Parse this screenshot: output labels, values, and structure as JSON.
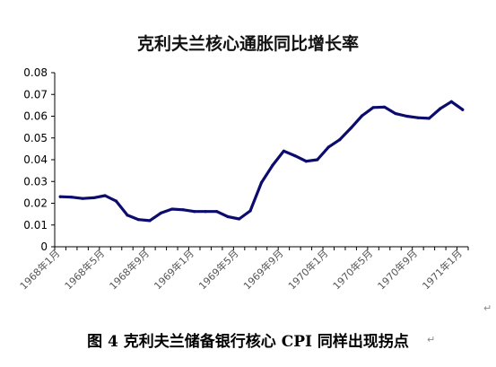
{
  "chart_data": {
    "type": "line",
    "title": "克利夫兰核心通胀同比增长率",
    "xlabel": "",
    "ylabel": "",
    "ylim": [
      0,
      0.08
    ],
    "yticks": [
      "0",
      "0.01",
      "0.02",
      "0.03",
      "0.04",
      "0.05",
      "0.06",
      "0.07",
      "0.08"
    ],
    "xtick_labels": [
      "1968年1月",
      "1968年5月",
      "1968年9月",
      "1969年1月",
      "1969年5月",
      "1969年9月",
      "1970年1月",
      "1970年5月",
      "1970年9月",
      "1971年1月"
    ],
    "grid": false,
    "legend": "none",
    "line_color": "#0c0c6e",
    "series": [
      {
        "values": [
          0.023,
          0.0228,
          0.0222,
          0.0225,
          0.0235,
          0.021,
          0.0145,
          0.0125,
          0.012,
          0.0155,
          0.0173,
          0.017,
          0.0162,
          0.0162,
          0.0162,
          0.0138,
          0.0128,
          0.0165,
          0.0295,
          0.0375,
          0.044,
          0.0418,
          0.0393,
          0.04,
          0.0458,
          0.0492,
          0.0545,
          0.0602,
          0.064,
          0.0642,
          0.0612,
          0.06,
          0.0593,
          0.059,
          0.0635,
          0.0667,
          0.063
        ]
      }
    ]
  },
  "caption": "图 4 克利夫兰储备银行核心 CPI 同样出现拐点",
  "paragraph_marks": [
    "↵",
    "↵"
  ]
}
